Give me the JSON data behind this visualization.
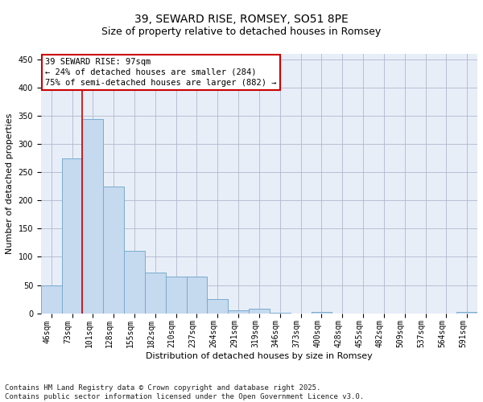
{
  "title": "39, SEWARD RISE, ROMSEY, SO51 8PE",
  "subtitle": "Size of property relative to detached houses in Romsey",
  "xlabel": "Distribution of detached houses by size in Romsey",
  "ylabel": "Number of detached properties",
  "categories": [
    "46sqm",
    "73sqm",
    "101sqm",
    "128sqm",
    "155sqm",
    "182sqm",
    "210sqm",
    "237sqm",
    "264sqm",
    "291sqm",
    "319sqm",
    "346sqm",
    "373sqm",
    "400sqm",
    "428sqm",
    "455sqm",
    "482sqm",
    "509sqm",
    "537sqm",
    "564sqm",
    "591sqm"
  ],
  "values": [
    50,
    275,
    345,
    225,
    110,
    72,
    65,
    65,
    25,
    5,
    8,
    1,
    0,
    2,
    0,
    0,
    0,
    0,
    0,
    0,
    2
  ],
  "bar_color": "#c5d9ef",
  "bar_edge_color": "#7aabcf",
  "vline_x_index": 1,
  "annotation_line1": "39 SEWARD RISE: 97sqm",
  "annotation_line2": "← 24% of detached houses are smaller (284)",
  "annotation_line3": "75% of semi-detached houses are larger (882) →",
  "annotation_box_facecolor": "#ffffff",
  "annotation_box_edgecolor": "#cc0000",
  "vline_color": "#cc0000",
  "ylim": [
    0,
    460
  ],
  "yticks": [
    0,
    50,
    100,
    150,
    200,
    250,
    300,
    350,
    400,
    450
  ],
  "grid_color": "#b0b8cc",
  "background_color": "#e8eef8",
  "footer_line1": "Contains HM Land Registry data © Crown copyright and database right 2025.",
  "footer_line2": "Contains public sector information licensed under the Open Government Licence v3.0.",
  "title_fontsize": 10,
  "subtitle_fontsize": 9,
  "axis_label_fontsize": 8,
  "tick_fontsize": 7,
  "annotation_fontsize": 7.5,
  "footer_fontsize": 6.5
}
